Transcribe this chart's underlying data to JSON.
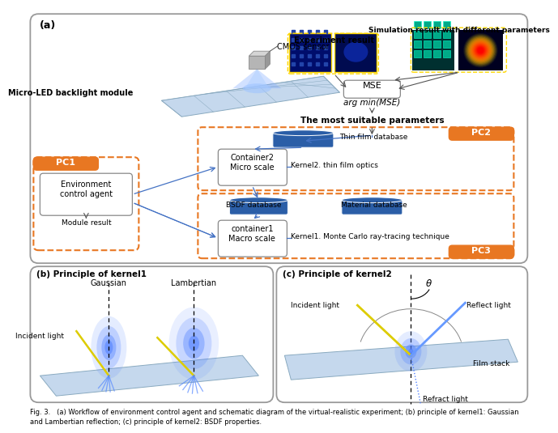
{
  "bg_color": "#ffffff",
  "orange": "#E87722",
  "blue_dark": "#2B5EA7",
  "blue_med": "#4472C4",
  "gray_border": "#999999",
  "title_a": "(a)",
  "title_b": "(b) Principle of kernel1",
  "title_c": "(c) Principle of kernel2",
  "labels": {
    "cmos": "CMOS sensor",
    "micro_led": "Micro-LED backlight module",
    "exp_result": "Experiment result",
    "sim_result": "Simulation result with different parameters",
    "mse": "MSE",
    "arg_min": "arg min(MSE)",
    "most_suitable": "The most suitable parameters",
    "pc1": "PC1",
    "pc2": "PC2",
    "pc3": "PC3",
    "env_agent": "Environment\ncontrol agent",
    "module_result": "Module result",
    "thin_film_db": "Thin film database",
    "container2": "Container2\nMicro scale",
    "kernel2_lbl": "Kernel2. thin film optics",
    "bsdf_db": "BSDF database",
    "material_db": "Material database",
    "container1": "container1\nMacro scale",
    "kernel1_lbl": "Kernel1. Monte Carlo ray-tracing technique",
    "gaussian": "Gaussian",
    "lambertian": "Lambertian",
    "incident_b": "Incident light",
    "incident_c": "Incident light",
    "reflect": "Reflect light",
    "film_stack": "Film stack",
    "refract": "Refract light",
    "theta": "θ"
  },
  "caption": "Fig. 3.   (a) Workflow of environment control agent and schematic diagram of the virtual-realistic experiment; (b) principle of kernel1: Gaussian\nand Lambertian reflection; (c) principle of kernel2: BSDF properties."
}
